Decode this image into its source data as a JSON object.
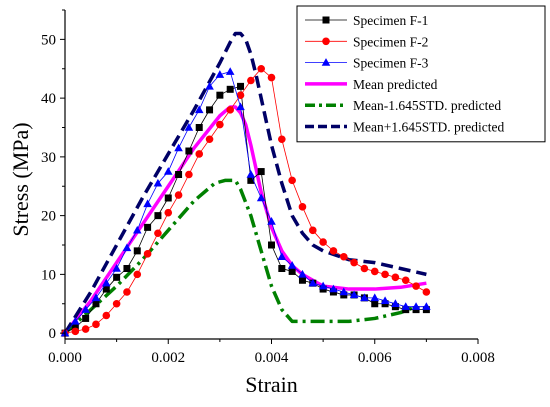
{
  "chart_data": {
    "type": "line",
    "xlabel": "Strain",
    "ylabel": "Stress (MPa)",
    "xlim": [
      0,
      0.008
    ],
    "ylim": [
      -1,
      55
    ],
    "x_ticks": [
      0,
      0.002,
      0.004,
      0.006,
      0.008
    ],
    "x_tick_labels": [
      "0.000",
      "0.002",
      "0.004",
      "0.006",
      "0.008"
    ],
    "y_ticks": [
      0,
      10,
      20,
      30,
      40,
      50
    ],
    "y_tick_labels": [
      "0",
      "10",
      "20",
      "30",
      "40",
      "50"
    ],
    "grid": false,
    "legend_position": "top-right",
    "series": [
      {
        "name": "Specimen F-1",
        "color": "#000000",
        "line": "solid-thin",
        "marker": "square",
        "x": [
          0.0,
          0.0002,
          0.0004,
          0.0006,
          0.0008,
          0.001,
          0.0012,
          0.0014,
          0.0016,
          0.0018,
          0.002,
          0.0022,
          0.0024,
          0.0026,
          0.0028,
          0.003,
          0.0032,
          0.0034,
          0.0036,
          0.0038,
          0.004,
          0.0042,
          0.0044,
          0.0046,
          0.0048,
          0.005,
          0.0052,
          0.0054,
          0.0056,
          0.0058,
          0.006,
          0.0062,
          0.0064,
          0.0066,
          0.0068,
          0.007
        ],
        "y": [
          0,
          1,
          2.5,
          5,
          7.5,
          9.5,
          11,
          14,
          18,
          20,
          23,
          27,
          31,
          35,
          38,
          40.5,
          41.5,
          42,
          26,
          27.5,
          15,
          11,
          10.5,
          9,
          8.5,
          7.5,
          7,
          6.5,
          6.5,
          6,
          5,
          5,
          4.5,
          4,
          4,
          4
        ]
      },
      {
        "name": "Specimen F-2",
        "color": "#ff0000",
        "line": "solid-thin",
        "marker": "circle",
        "x": [
          0.0,
          0.0002,
          0.0004,
          0.0006,
          0.0008,
          0.001,
          0.0012,
          0.0014,
          0.0016,
          0.0018,
          0.002,
          0.0022,
          0.0024,
          0.0026,
          0.0028,
          0.003,
          0.0032,
          0.0034,
          0.0036,
          0.0038,
          0.004,
          0.0042,
          0.0044,
          0.0046,
          0.0048,
          0.005,
          0.0052,
          0.0054,
          0.0056,
          0.0058,
          0.006,
          0.0062,
          0.0064,
          0.0066,
          0.0068,
          0.007
        ],
        "y": [
          0,
          0.3,
          0.7,
          1.5,
          3,
          5,
          7,
          10,
          13.5,
          17,
          20.5,
          23.5,
          27,
          30.5,
          33,
          35.5,
          38,
          40.5,
          43,
          45,
          43.5,
          33,
          26,
          21.5,
          17.5,
          15.5,
          14,
          13,
          12,
          11,
          10.5,
          10,
          9.5,
          9,
          8,
          7
        ]
      },
      {
        "name": "Specimen F-3",
        "color": "#0000ff",
        "line": "solid-thin",
        "marker": "triangle",
        "x": [
          0.0,
          0.0002,
          0.0004,
          0.0006,
          0.0008,
          0.001,
          0.0012,
          0.0014,
          0.0016,
          0.0018,
          0.002,
          0.0022,
          0.0024,
          0.0026,
          0.0028,
          0.003,
          0.0032,
          0.0034,
          0.0036,
          0.0038,
          0.004,
          0.0042,
          0.0044,
          0.0046,
          0.0048,
          0.005,
          0.0052,
          0.0054,
          0.0056,
          0.0058,
          0.006,
          0.0062,
          0.0064,
          0.0066,
          0.0068,
          0.007
        ],
        "y": [
          0,
          2,
          4,
          6,
          8.5,
          11,
          14.5,
          17.5,
          22,
          25.5,
          27.5,
          31.5,
          35,
          38,
          42,
          44,
          44.5,
          38.5,
          27,
          23,
          19,
          13,
          11.5,
          10,
          8.5,
          8,
          7.5,
          7,
          6.5,
          6,
          6,
          5.5,
          5,
          4.5,
          4.5,
          4.5
        ]
      },
      {
        "name": "Mean predicted",
        "color": "#ff00ff",
        "line": "solid-thick",
        "x": [
          0.0,
          0.0005,
          0.001,
          0.0015,
          0.002,
          0.0025,
          0.003,
          0.0032,
          0.0033,
          0.0034,
          0.0035,
          0.0036,
          0.0037,
          0.0038,
          0.004,
          0.0042,
          0.0044,
          0.0046,
          0.0048,
          0.005,
          0.0055,
          0.006,
          0.0065,
          0.007
        ],
        "y": [
          0,
          5.5,
          12,
          18.5,
          25,
          31.5,
          37,
          38.5,
          38.5,
          37.5,
          35.5,
          32,
          28,
          24,
          18,
          14,
          11.5,
          10,
          9,
          8,
          7.5,
          7.5,
          7.8,
          8.5
        ]
      },
      {
        "name": "Mean-1.645STD. predicted",
        "color": "#008000",
        "line": "dash-dot-thick",
        "x": [
          0.0,
          0.0005,
          0.001,
          0.0015,
          0.002,
          0.0025,
          0.0029,
          0.0031,
          0.0033,
          0.0034,
          0.0036,
          0.0038,
          0.004,
          0.0042,
          0.0044,
          0.0045,
          0.0046,
          0.005,
          0.0055,
          0.006,
          0.0065,
          0.0068
        ],
        "y": [
          0,
          4,
          8,
          12.5,
          17.5,
          22.5,
          25.5,
          26,
          26,
          24.5,
          20,
          14,
          8,
          4,
          2,
          2,
          2,
          2,
          2,
          2.5,
          3.5,
          4.5
        ]
      },
      {
        "name": "Mean+1.645STD. predicted",
        "color": "#000066",
        "line": "dash-thick",
        "x": [
          0.0,
          0.0005,
          0.001,
          0.0015,
          0.002,
          0.0025,
          0.003,
          0.0032,
          0.0033,
          0.0034,
          0.0035,
          0.0036,
          0.0037,
          0.0038,
          0.004,
          0.0042,
          0.0044,
          0.0046,
          0.0048,
          0.005,
          0.0055,
          0.006,
          0.0065,
          0.007
        ],
        "y": [
          0,
          7,
          15,
          23,
          30.5,
          38,
          46,
          49.5,
          51,
          51,
          50,
          47.5,
          44,
          40,
          32,
          25.5,
          20,
          17,
          15,
          14,
          12.5,
          12,
          11,
          10
        ]
      }
    ]
  }
}
